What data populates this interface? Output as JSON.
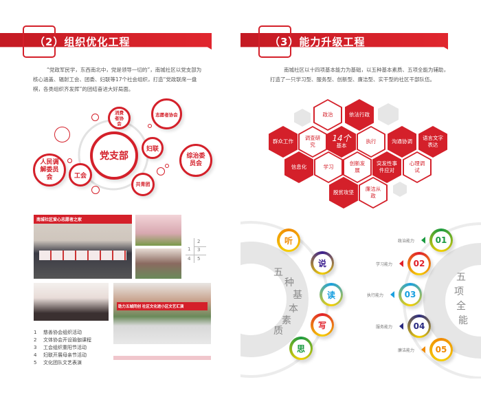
{
  "left": {
    "title": "（2）组织优化工程",
    "paragraph": [
      "“党政军民学，东西南北中，党是领导一切的”，南城社区以党支部为",
      "核心涵盖、辐射工会、团委、妇联等17个社会组织，打造“党政联席一盘",
      "棋，各类组织齐发挥”的团结奋进大好局面。"
    ],
    "org": {
      "center": "党支部",
      "nodes": [
        "消费者协会",
        "志愿者协会",
        "妇联",
        "综治委员会",
        "共青团",
        "工会",
        "人民调解委员会"
      ]
    },
    "photo_banners": [
      "南城社区爱心志愿者之家",
      "助力五城同创 社区文化进小区文艺汇演"
    ],
    "photo_grid_numbers": [
      "1",
      "2",
      "3",
      "4",
      "5"
    ],
    "captions": [
      {
        "n": "1",
        "t": "慈善协会组织活动"
      },
      {
        "n": "2",
        "t": "文体协会开设瑜伽课程"
      },
      {
        "n": "3",
        "t": "工会组织重阳节活动"
      },
      {
        "n": "4",
        "t": "妇联开展母亲节活动"
      },
      {
        "n": "5",
        "t": "文化团队文艺表演"
      }
    ]
  },
  "right": {
    "title": "（3）能力升级工程",
    "paragraph": [
      "南城社区以十四项基本能力为基础，以五种基本素质、五项全能为辅助，",
      "打造了一只学习型、服务型、创新型、廉洁型、实干型的社区干部队伍。"
    ],
    "hex_center": {
      "big": "14个",
      "small": "基本"
    },
    "hexes": [
      {
        "t": "政治",
        "s": "white"
      },
      {
        "t": "依法行政",
        "s": "red"
      },
      {
        "t": "群众工作",
        "s": "red"
      },
      {
        "t": "调查研究",
        "s": "white"
      },
      {
        "t": "执行",
        "s": "white"
      },
      {
        "t": "沟通协调",
        "s": "red"
      },
      {
        "t": "语言文字表达",
        "s": "red"
      },
      {
        "t": "信息化",
        "s": "red"
      },
      {
        "t": "学习",
        "s": "white"
      },
      {
        "t": "创新发展",
        "s": "white"
      },
      {
        "t": "突发性事件应对",
        "s": "red"
      },
      {
        "t": "心理调试",
        "s": "white"
      },
      {
        "t": "脱贫攻坚",
        "s": "red"
      },
      {
        "t": "廉洁从政",
        "s": "white"
      }
    ],
    "five_qualities": {
      "label": [
        "五",
        "种",
        "基",
        "本",
        "素",
        "质"
      ],
      "items": [
        {
          "t": "听",
          "color": "#f08a00"
        },
        {
          "t": "说",
          "color": "#3b1f8f"
        },
        {
          "t": "读",
          "color": "#1aa0e0"
        },
        {
          "t": "写",
          "color": "#e0202a"
        },
        {
          "t": "思",
          "color": "#1a9a40"
        }
      ]
    },
    "five_abilities": {
      "label": [
        "五",
        "项",
        "全",
        "能"
      ],
      "items": [
        {
          "n": "01",
          "t": "政治能力",
          "color": "#1a9a40"
        },
        {
          "n": "02",
          "t": "学习能力",
          "color": "#e0202a"
        },
        {
          "n": "03",
          "t": "执行能力",
          "color": "#1aa0e0"
        },
        {
          "n": "04",
          "t": "服务能力",
          "color": "#2a2a80"
        },
        {
          "n": "05",
          "t": "廉洁能力",
          "color": "#f08a00"
        }
      ]
    }
  },
  "colors": {
    "accent": "#d4202a"
  }
}
